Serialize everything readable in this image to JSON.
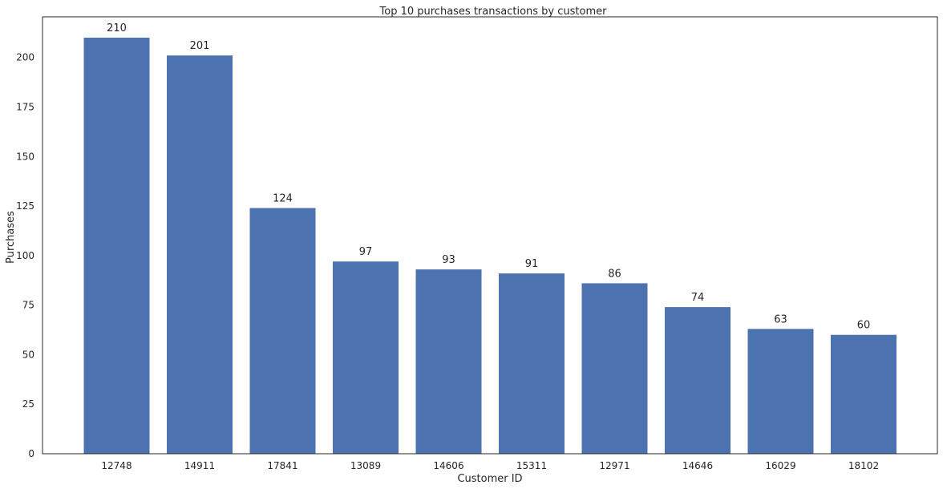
{
  "chart_data": {
    "type": "bar",
    "title": "Top 10 purchases transactions by customer",
    "xlabel": "Customer ID",
    "ylabel": "Purchases",
    "categories": [
      "12748",
      "14911",
      "17841",
      "13089",
      "14606",
      "15311",
      "12971",
      "14646",
      "16029",
      "18102"
    ],
    "values": [
      210,
      201,
      124,
      97,
      93,
      91,
      86,
      74,
      63,
      60
    ],
    "data_labels": [
      "210",
      "201",
      "124",
      "97",
      "93",
      "91",
      "86",
      "74",
      "63",
      "60"
    ],
    "ylim": [
      0,
      220.5
    ],
    "yticks": [
      0,
      25,
      50,
      75,
      100,
      125,
      150,
      175,
      200
    ],
    "ytick_labels": [
      "0",
      "25",
      "50",
      "75",
      "100",
      "125",
      "150",
      "175",
      "200"
    ],
    "grid": false,
    "legend": "none",
    "bar_color": "#4c72b0",
    "axis_color": "#262626"
  }
}
